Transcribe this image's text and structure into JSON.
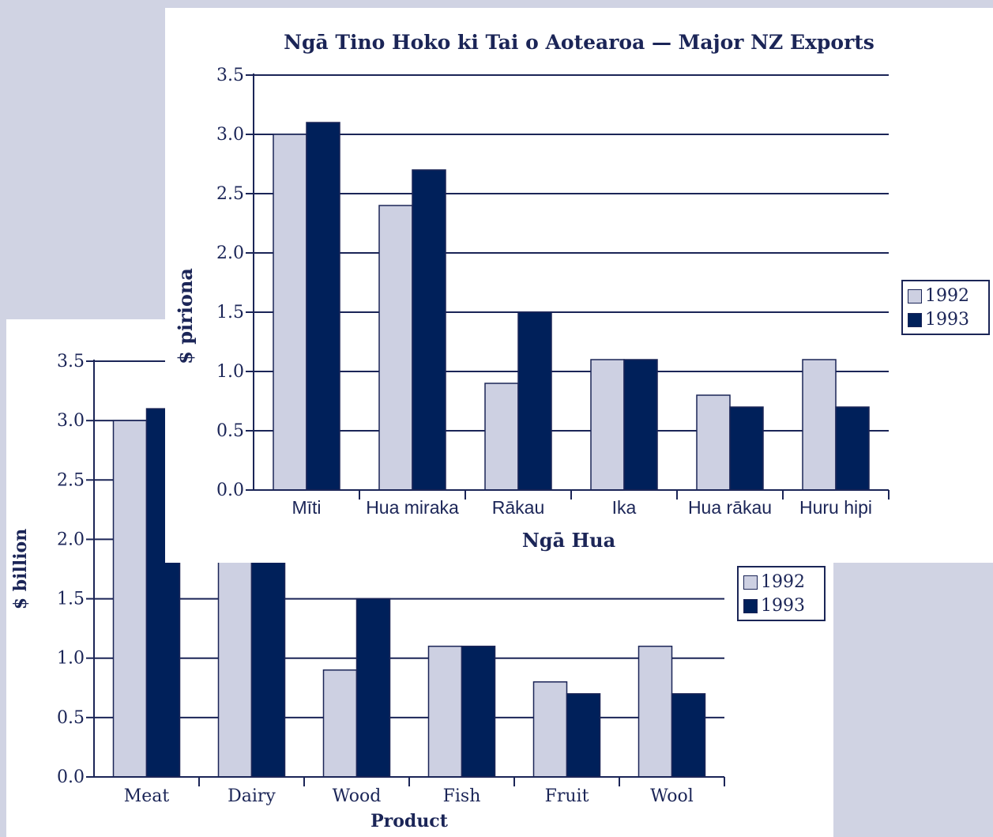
{
  "colors": {
    "series_1992": "#cdd0e2",
    "series_1993": "#00205a",
    "axis": "#1b2557",
    "background": "#d0d3e3"
  },
  "chart_data": [
    {
      "type": "bar",
      "title": "Ngā Tino Hoko ki Tai o Aotearoa — Major NZ Exports",
      "xlabel": "Ngā Hua",
      "ylabel": "$ piriona",
      "categories": [
        "Mīti",
        "Hua miraka",
        "Rākau",
        "Ika",
        "Hua rākau",
        "Huru hipi"
      ],
      "series": [
        {
          "name": "1992",
          "values": [
            3.0,
            2.4,
            0.9,
            1.1,
            0.8,
            1.1
          ]
        },
        {
          "name": "1993",
          "values": [
            3.1,
            2.7,
            1.5,
            1.1,
            0.7,
            0.7
          ]
        }
      ],
      "ylim": [
        0,
        3.5
      ],
      "yticks": [
        "0.0",
        "0.5",
        "1.0",
        "1.5",
        "2.0",
        "2.5",
        "3.0",
        "3.5"
      ],
      "grid": true,
      "legend": "right"
    },
    {
      "type": "bar",
      "title": "",
      "xlabel": "Product",
      "ylabel": "$ billion",
      "categories": [
        "Meat",
        "Dairy",
        "Wood",
        "Fish",
        "Fruit",
        "Wool"
      ],
      "series": [
        {
          "name": "1992",
          "values": [
            3.0,
            2.4,
            0.9,
            1.1,
            0.8,
            1.1
          ]
        },
        {
          "name": "1993",
          "values": [
            3.1,
            2.7,
            1.5,
            1.1,
            0.7,
            0.7
          ]
        }
      ],
      "ylim": [
        0,
        3.5
      ],
      "yticks": [
        "0.0",
        "0.5",
        "1.0",
        "1.5",
        "2.0",
        "2.5",
        "3.0",
        "3.5"
      ],
      "grid": true,
      "legend": "right"
    }
  ]
}
